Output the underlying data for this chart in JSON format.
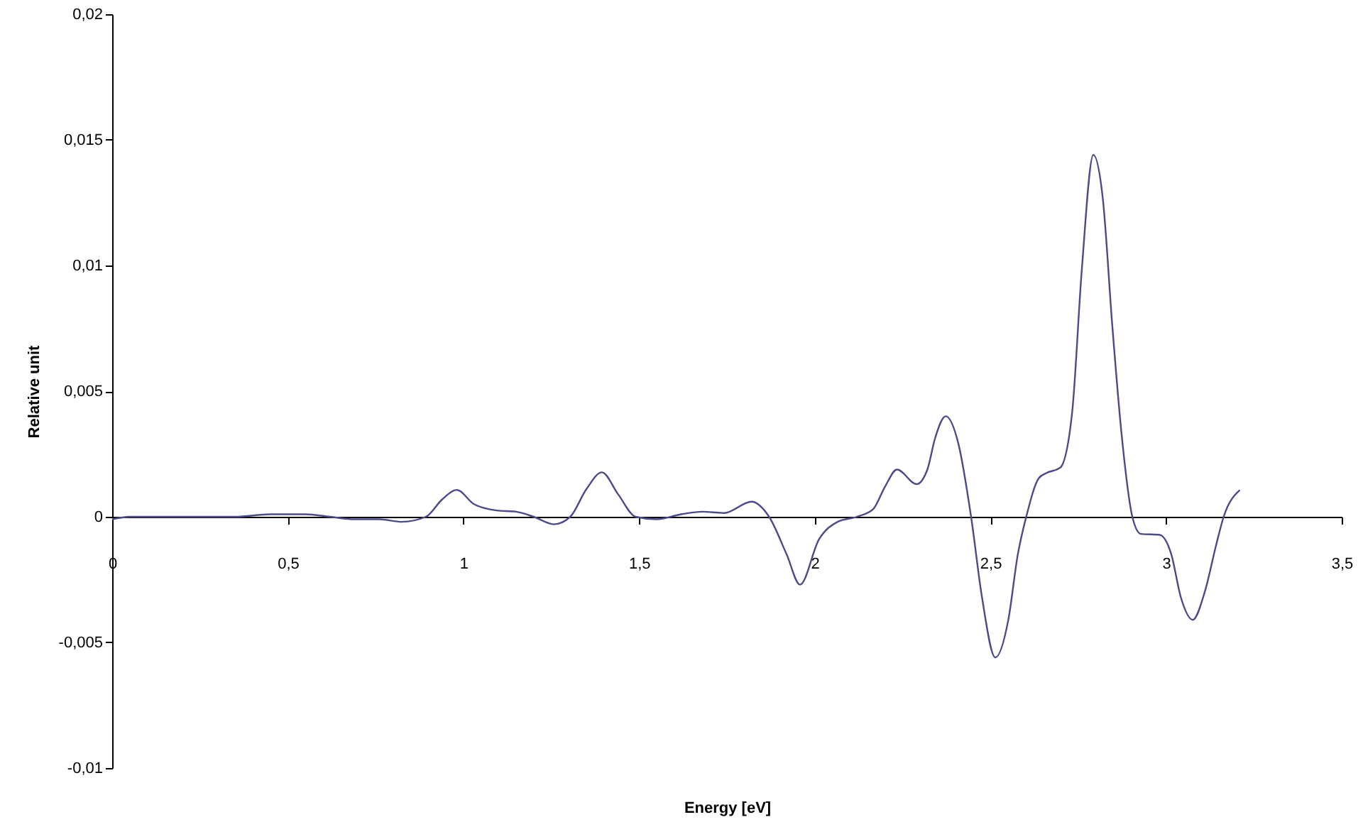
{
  "chart_data": {
    "type": "line",
    "xlabel": "Energy [eV]",
    "ylabel": "Relative unit",
    "x": [
      0,
      0.05,
      0.2,
      0.35,
      0.45,
      0.55,
      0.62,
      0.69,
      0.76,
      0.825,
      0.893,
      0.94,
      0.981,
      1.03,
      1.095,
      1.15,
      1.2,
      1.257,
      1.304,
      1.35,
      1.394,
      1.44,
      1.49,
      1.55,
      1.62,
      1.68,
      1.742,
      1.82,
      1.87,
      1.92,
      1.958,
      2.012,
      2.065,
      2.12,
      2.166,
      2.2,
      2.234,
      2.29,
      2.321,
      2.342,
      2.373,
      2.409,
      2.445,
      2.476,
      2.514,
      2.551,
      2.578,
      2.602,
      2.638,
      2.658,
      2.699,
      2.733,
      2.76,
      2.793,
      2.82,
      2.847,
      2.874,
      2.904,
      2.928,
      2.982,
      3.015,
      3.042,
      3.076,
      3.11,
      3.143,
      3.164,
      3.21
    ],
    "series": [
      {
        "color": "#4b4b8c",
        "values": [
          -0.0001,
          0,
          0,
          0,
          0.0001,
          0.0001,
          0,
          -0.0001,
          -0.0001,
          -0.0002,
          0,
          0.0007,
          0.00107,
          0.0005,
          0.00025,
          0.0002,
          0,
          -0.0003,
          0,
          0.0011,
          0.00177,
          0.0009,
          0,
          -0.0001,
          0.0001,
          0.0002,
          0.00015,
          0.0006,
          0,
          -0.0015,
          -0.0027,
          -0.0009,
          -0.0002,
          0,
          0.0003,
          0.0012,
          0.00188,
          0.0013,
          0.0019,
          0.0031,
          0.004,
          0.0029,
          0,
          -0.0032,
          -0.0056,
          -0.0041,
          -0.0015,
          0,
          0.00154,
          0.00173,
          0.00196,
          0.0042,
          0.0098,
          0.0144,
          0.01266,
          0.0076,
          0.0032,
          0,
          -0.00068,
          -0.00072,
          -0.0015,
          -0.0032,
          -0.0041,
          -0.003,
          -0.0011,
          0,
          0.00106
        ]
      }
    ],
    "xlim": [
      0,
      3.5
    ],
    "xticks": [
      0,
      {
        "value": 0.5,
        "label": "0,5"
      },
      1,
      {
        "value": 1.5,
        "label": "1,5"
      },
      2,
      {
        "value": 2.5,
        "label": "2,5"
      },
      3,
      {
        "value": 3.5,
        "label": "3,5"
      }
    ],
    "ylim": [
      -0.01,
      0.02
    ],
    "yticks": [
      {
        "value": -0.01,
        "label": "-0,01"
      },
      {
        "value": -0.005,
        "label": "-0,005"
      },
      0,
      {
        "value": 0.005,
        "label": "0,005"
      },
      {
        "value": 0.01,
        "label": "0,01"
      },
      {
        "value": 0.015,
        "label": "0,015"
      },
      {
        "value": 0.02,
        "label": "0,02"
      }
    ],
    "grid": false,
    "marker": "none",
    "line_style": "solid"
  }
}
